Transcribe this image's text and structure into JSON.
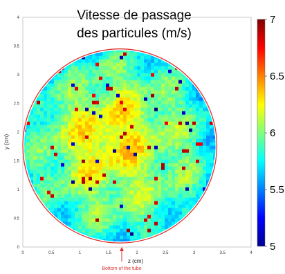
{
  "chart_data": {
    "type": "heatmap",
    "title_lines": [
      "Vitesse de passage",
      "des particules (m/s)"
    ],
    "xlabel": "z (cm)",
    "ylabel": "y (cm)",
    "xlim": [
      0,
      4
    ],
    "ylim": [
      0,
      4
    ],
    "x_ticks": [
      "0",
      "0.5",
      "1",
      "1.5",
      "2",
      "2.5",
      "3",
      "3.5",
      "4"
    ],
    "y_ticks": [
      "0",
      "0.5",
      "1",
      "1.5",
      "2",
      "2.5",
      "3",
      "3.5",
      "4"
    ],
    "circle": {
      "center": [
        1.7,
        1.76
      ],
      "radius": 1.7,
      "color": "#e0302e"
    },
    "colorbar": {
      "min": 5,
      "max": 7,
      "ticks": [
        "5",
        "5.5",
        "6",
        "6.5",
        "7"
      ],
      "colormap": "jet"
    },
    "annotation": {
      "text": "Bottom of the tube",
      "color": "#e0302e"
    },
    "value_summary": {
      "typical_range": [
        5.6,
        6.4
      ],
      "hot_zone": "center and lower-center regions reach ~6.6-7 m/s",
      "cold_spots": "scattered dark-blue points near the rim and center (~5 m/s)"
    }
  }
}
